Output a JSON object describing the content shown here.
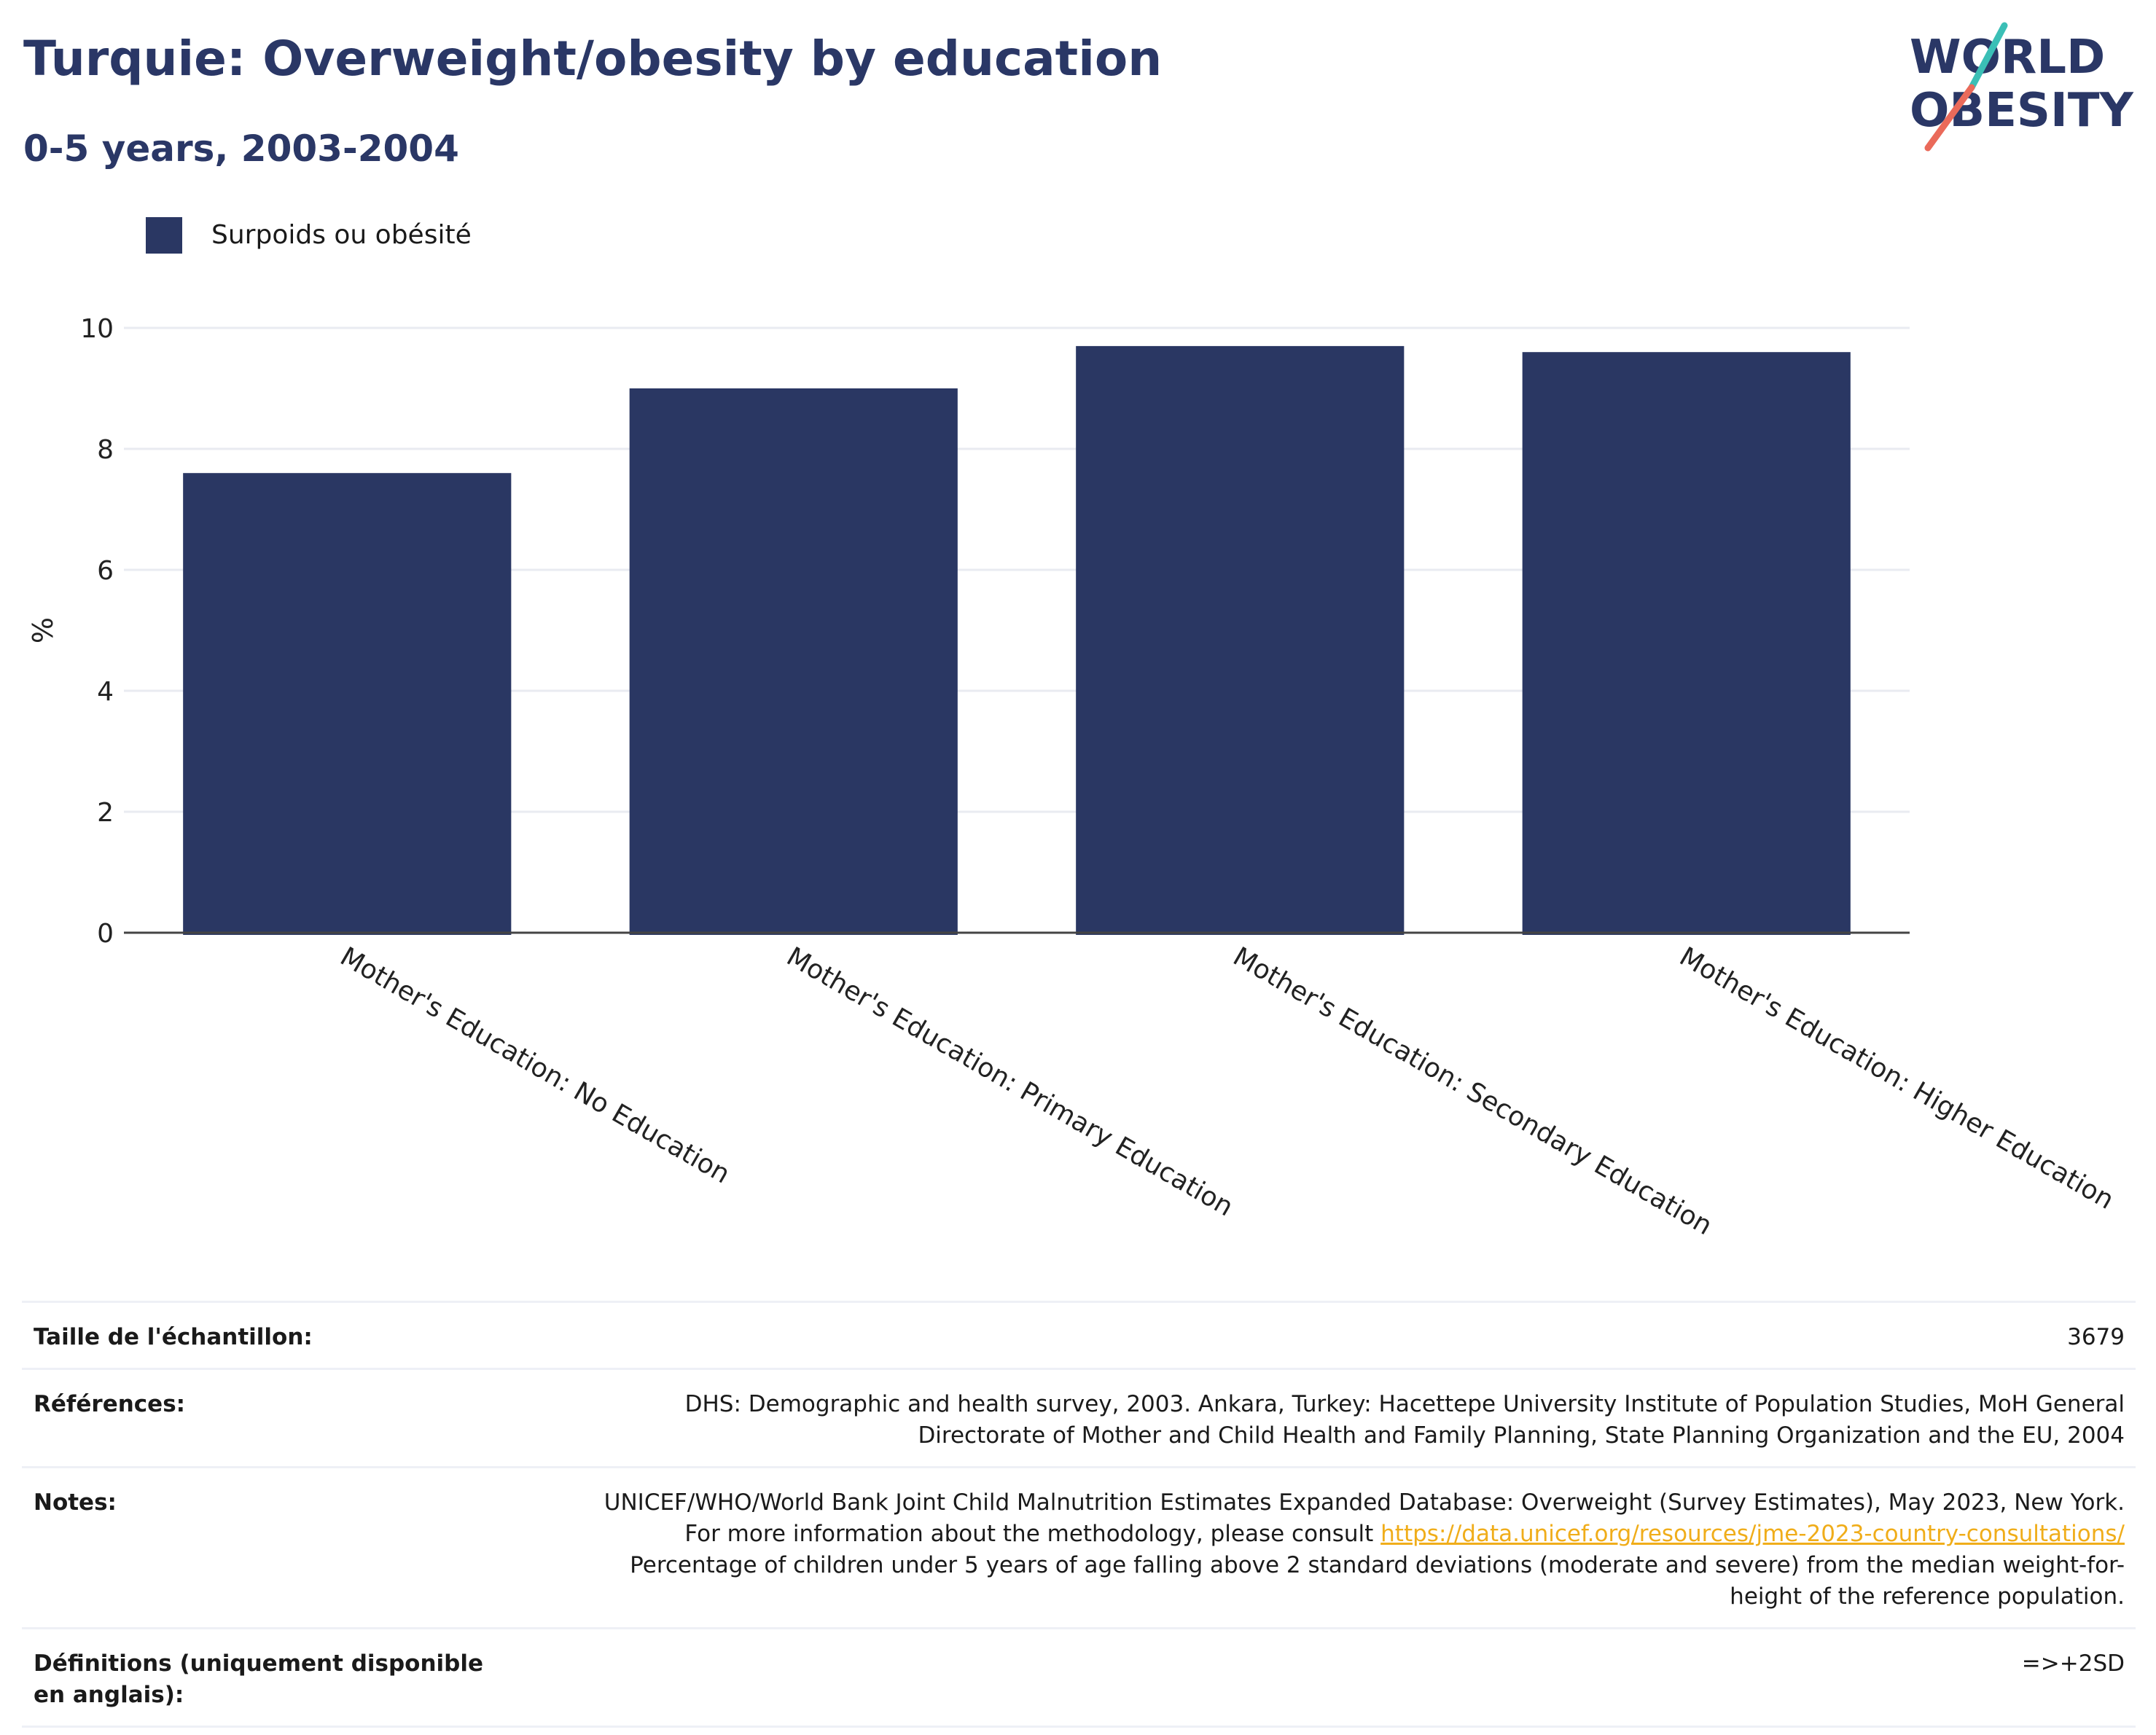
{
  "header": {
    "title": "Turquie: Overweight/obesity by education",
    "subtitle": "0-5 years, 2003-2004"
  },
  "logo": {
    "line1": "WORLD",
    "line2": "OBESITY"
  },
  "colors": {
    "bar": "#2a3763",
    "title": "#2a3766",
    "grid": "#e9ebf1",
    "axis": "#444444",
    "link": "#f0ad1a",
    "logo_teal": "#3bbfb6",
    "logo_coral": "#ea6a5a"
  },
  "chart_data": {
    "type": "bar",
    "title": "Turquie: Overweight/obesity by education",
    "subtitle": "0-5 years, 2003-2004",
    "categories": [
      "Mother's Education: No Education",
      "Mother's Education: Primary Education",
      "Mother's Education: Secondary Education",
      "Mother's Education: Higher Education"
    ],
    "series": [
      {
        "name": "Surpoids ou obésité",
        "values": [
          7.6,
          9.0,
          9.7,
          9.6
        ]
      }
    ],
    "xlabel": "",
    "ylabel": "%",
    "ylim": [
      0,
      10
    ],
    "yticks": [
      "0",
      "2",
      "4",
      "6",
      "8",
      "10"
    ],
    "grid": true,
    "legend": "top-left"
  },
  "info": {
    "sample": {
      "label": "Taille de l'échantillon:",
      "value": "3679"
    },
    "references": {
      "label": "Références:",
      "value": "DHS: Demographic and health survey, 2003. Ankara, Turkey: Hacettepe University Institute of Population Studies, MoH General Directorate of Mother and Child Health and Family Planning, State Planning Organization and the EU, 2004"
    },
    "notes": {
      "label": "Notes:",
      "text_before": "UNICEF/WHO/World Bank Joint Child Malnutrition Estimates Expanded Database: Overweight (Survey Estimates), May 2023, New York. For more information about the methodology, please consult",
      "link": "https://data.unicef.org/resources/jme-2023-country-consultations/",
      "text_after": "Percentage of children under 5 years of age falling above 2 standard deviations (moderate and severe) from the median weight-for-height of the reference population."
    },
    "definitions": {
      "label": "Définitions (uniquement disponible en anglais):",
      "value": "=>+2SD"
    }
  }
}
